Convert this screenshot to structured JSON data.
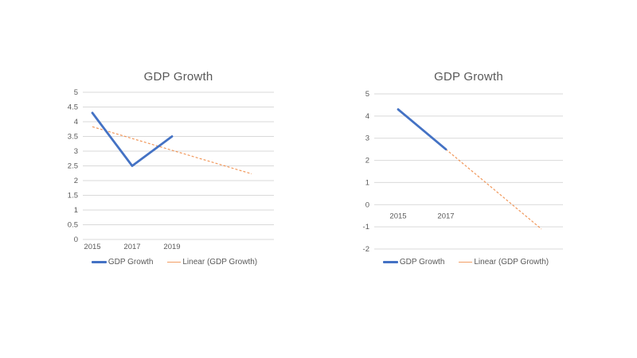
{
  "chart_data": [
    {
      "type": "line",
      "title": "GDP Growth",
      "categories": [
        "2015",
        "2017",
        "2019"
      ],
      "series": [
        {
          "name": "GDP Growth",
          "color": "#4472C4",
          "values": [
            4.3,
            2.5,
            3.5
          ]
        }
      ],
      "trendline": {
        "name": "Linear (GDP Growth)",
        "kind": "linear",
        "color": "#ED7D31",
        "start_value": 3.83,
        "end_value": 2.23,
        "forecast_periods": 2
      },
      "ylim": [
        0,
        5
      ],
      "ytick_step": 0.5,
      "grid": true,
      "legend_position": "bottom",
      "axis_label_color": "#595959",
      "gridline_color": "#D9D9D9"
    },
    {
      "type": "line",
      "title": "GDP Growth",
      "categories": [
        "2015",
        "2017"
      ],
      "series": [
        {
          "name": "GDP Growth",
          "color": "#4472C4",
          "values": [
            4.3,
            2.5
          ]
        }
      ],
      "trendline": {
        "name": "Linear (GDP Growth)",
        "kind": "linear",
        "color": "#ED7D31",
        "start_value": 4.3,
        "end_value": -1.1,
        "forecast_periods": 2
      },
      "ylim": [
        -2,
        5
      ],
      "ytick_step": 1,
      "grid": true,
      "legend_position": "bottom",
      "axis_label_color": "#595959",
      "gridline_color": "#D9D9D9"
    }
  ]
}
